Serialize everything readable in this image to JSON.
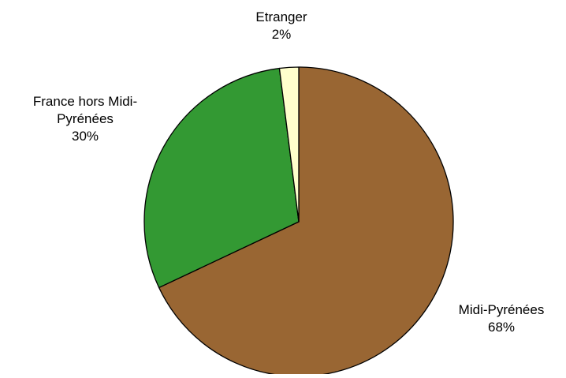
{
  "chart_data": {
    "type": "pie",
    "title": "",
    "start_angle_deg": 0,
    "direction": "clockwise",
    "slices": [
      {
        "label_lines": [
          "Midi-Pyrénées",
          "68%"
        ],
        "name": "Midi-Pyrénées",
        "value": 68,
        "color": "#996633"
      },
      {
        "label_lines": [
          "France hors Midi-",
          "Pyrénées",
          "30%"
        ],
        "name": "France hors Midi-Pyrénées",
        "value": 30,
        "color": "#339933"
      },
      {
        "label_lines": [
          "Etranger",
          "2%"
        ],
        "name": "Etranger",
        "value": 2,
        "color": "#FFFFCC"
      }
    ],
    "legend": "none",
    "labels_outside": true
  }
}
